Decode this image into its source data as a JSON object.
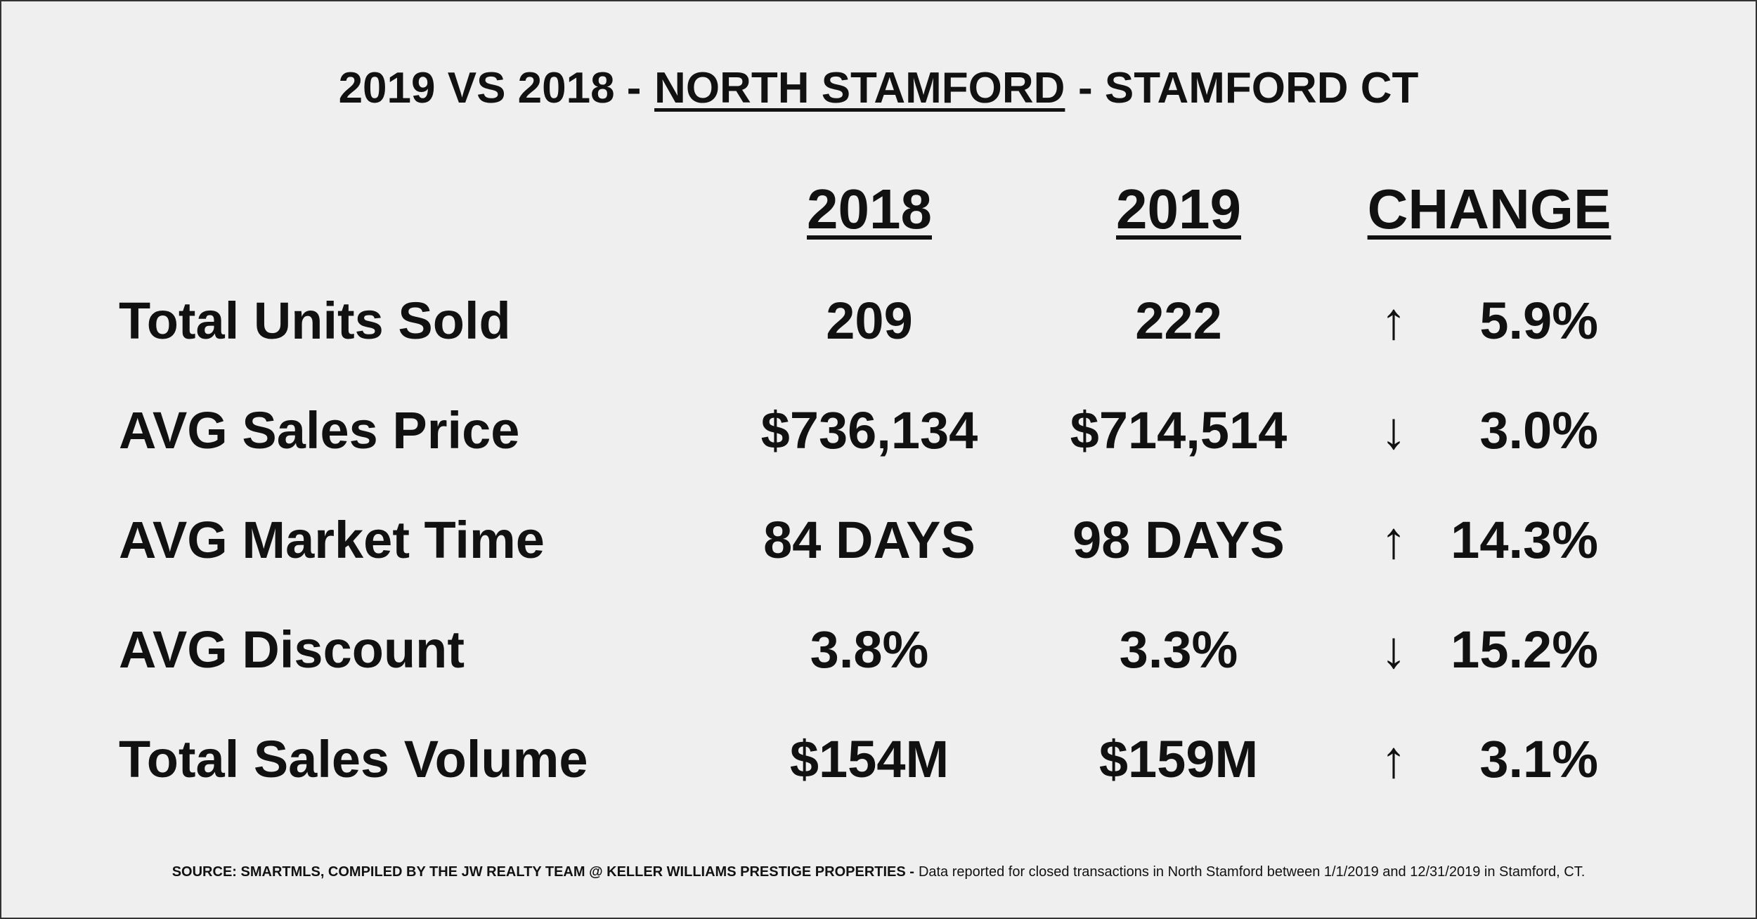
{
  "title": {
    "before": "2019 VS 2018 -",
    "highlight": "NORTH STAMFORD",
    "after": "- STAMFORD CT"
  },
  "table": {
    "headers": [
      "2018",
      "2019",
      "CHANGE"
    ],
    "rows": [
      {
        "label": "Total Units Sold",
        "year_2018": "209",
        "year_2019": "222",
        "arrow": "↑",
        "change": "5.9%"
      },
      {
        "label": "AVG Sales Price",
        "year_2018": "$736,134",
        "year_2019": "$714,514",
        "arrow": "↓",
        "change": "3.0%"
      },
      {
        "label": "AVG Market Time",
        "year_2018": "84 DAYS",
        "year_2019": "98 DAYS",
        "arrow": "↑",
        "change": "14.3%"
      },
      {
        "label": "AVG Discount",
        "year_2018": "3.8%",
        "year_2019": "3.3%",
        "arrow": "↓",
        "change": "15.2%"
      },
      {
        "label": "Total Sales Volume",
        "year_2018": "$154M",
        "year_2019": "$159M",
        "arrow": "↑",
        "change": "3.1%"
      }
    ]
  },
  "footer": {
    "source": "SOURCE: SMARTMLS, COMPILED BY THE JW REALTY TEAM @ KELLER WILLIAMS PRESTIGE PROPERTIES -",
    "note": "Data reported for closed transactions in North Stamford between 1/1/2019 and 12/31/2019 in Stamford, CT."
  }
}
